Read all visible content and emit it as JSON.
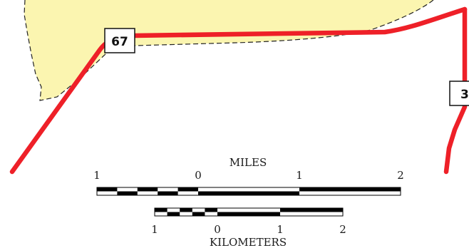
{
  "colors": {
    "land_area": "#fbf5b0",
    "highway": "#ee2028",
    "boundary": "#222222",
    "scale_ink": "#000000"
  },
  "routes": [
    {
      "label": "67"
    },
    {
      "label": "3"
    }
  ],
  "scale_bar": {
    "miles": {
      "title": "MILES",
      "ticks": [
        "1",
        "0",
        "1",
        "2"
      ]
    },
    "kilometers": {
      "title": "KILOMETERS",
      "ticks": [
        "1",
        "0",
        "1",
        "2"
      ]
    }
  }
}
